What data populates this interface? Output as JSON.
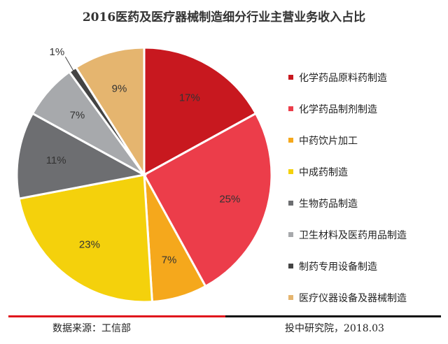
{
  "footer": {
    "source": "数据来源：工信部",
    "credit": "投中研究院，2018.03"
  },
  "chart_data": {
    "type": "pie",
    "title": "2016医药及医疗器械制造细分行业主营业务收入占比",
    "legend_position": "right",
    "slices": [
      {
        "name": "化学药品原料药制造",
        "value": 17,
        "label": "17%",
        "color": "#c8181f"
      },
      {
        "name": "化学药品制剂制造",
        "value": 25,
        "label": "25%",
        "color": "#ec3d4a"
      },
      {
        "name": "中药饮片加工",
        "value": 7,
        "label": "7%",
        "color": "#f5a81c"
      },
      {
        "name": "中成药制造",
        "value": 23,
        "label": "23%",
        "color": "#f4d10c"
      },
      {
        "name": "生物药品制造",
        "value": 11,
        "label": "11%",
        "color": "#6d6e71"
      },
      {
        "name": "卫生材料及医药用品制造",
        "value": 7,
        "label": "7%",
        "color": "#a7a9ac"
      },
      {
        "name": "制药专用设备制造",
        "value": 1,
        "label": "1%",
        "color": "#444444"
      },
      {
        "name": "医疗仪器设备及器械制造",
        "value": 9,
        "label": "9%",
        "color": "#e5b56f"
      }
    ]
  }
}
